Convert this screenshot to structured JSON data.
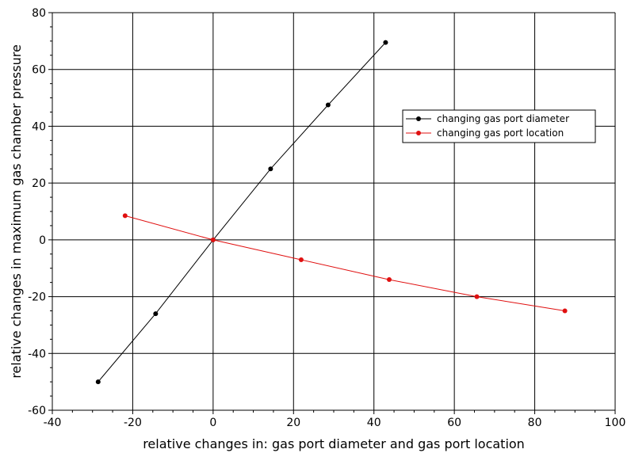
{
  "chart_data": {
    "type": "line",
    "title": "",
    "xlabel": "relative changes in: gas port diameter and gas port location",
    "ylabel": "relative changes in maximum gas chamber pressure",
    "xlim": [
      -40,
      100
    ],
    "ylim": [
      -60,
      80
    ],
    "xticks": [
      -40,
      -20,
      0,
      20,
      40,
      60,
      80,
      100
    ],
    "yticks": [
      -60,
      -40,
      -20,
      0,
      20,
      40,
      60,
      80
    ],
    "grid": true,
    "legend_position": "right",
    "series": [
      {
        "name": "changing gas port diameter",
        "color": "#000000",
        "points": [
          [
            -28.6,
            -50
          ],
          [
            -14.3,
            -26
          ],
          [
            0,
            0
          ],
          [
            14.3,
            25
          ],
          [
            28.6,
            47.5
          ],
          [
            42.9,
            69.5
          ]
        ]
      },
      {
        "name": "changing gas port location",
        "color": "#e01010",
        "points": [
          [
            -21.9,
            8.5
          ],
          [
            0,
            0
          ],
          [
            21.9,
            -7
          ],
          [
            43.8,
            -14
          ],
          [
            65.6,
            -20
          ],
          [
            87.5,
            -25
          ]
        ]
      }
    ]
  }
}
